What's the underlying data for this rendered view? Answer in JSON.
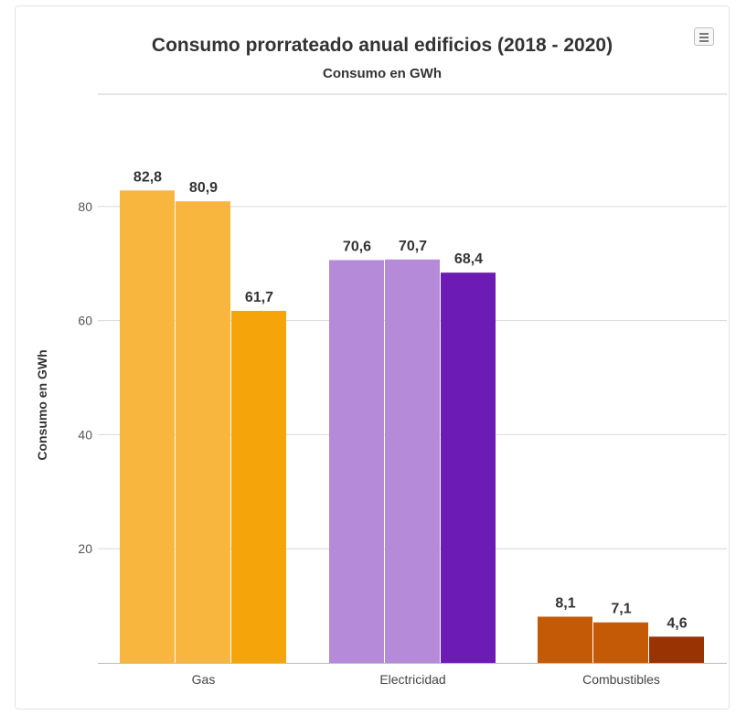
{
  "chart_data": {
    "type": "bar",
    "title": "Consumo prorrateado anual edificios (2018 - 2020)",
    "subtitle": "Consumo en GWh",
    "ylabel": "Consumo en GWh",
    "xlabel": "",
    "categories": [
      "Gas",
      "Electricidad",
      "Combustibles"
    ],
    "ylim": [
      0,
      100
    ],
    "yticks": [
      20,
      40,
      60,
      80
    ],
    "grid": true,
    "legend": false,
    "groups": [
      {
        "category": "Gas",
        "values": [
          82.8,
          80.9,
          61.7
        ],
        "labels": [
          "82,8",
          "80,9",
          "61,7"
        ],
        "colors": [
          "#f8b63f",
          "#f8b63f",
          "#f5a40a"
        ]
      },
      {
        "category": "Electricidad",
        "values": [
          70.6,
          70.7,
          68.4
        ],
        "labels": [
          "70,6",
          "70,7",
          "68,4"
        ],
        "colors": [
          "#b48ad9",
          "#b48ad9",
          "#6c1bb4"
        ]
      },
      {
        "category": "Combustibles",
        "values": [
          8.1,
          7.1,
          4.6
        ],
        "labels": [
          "8,1",
          "7,1",
          "4,6"
        ],
        "colors": [
          "#c55a06",
          "#c55a06",
          "#993303"
        ]
      }
    ]
  },
  "menu": {
    "icon": "hamburger-menu-icon"
  }
}
